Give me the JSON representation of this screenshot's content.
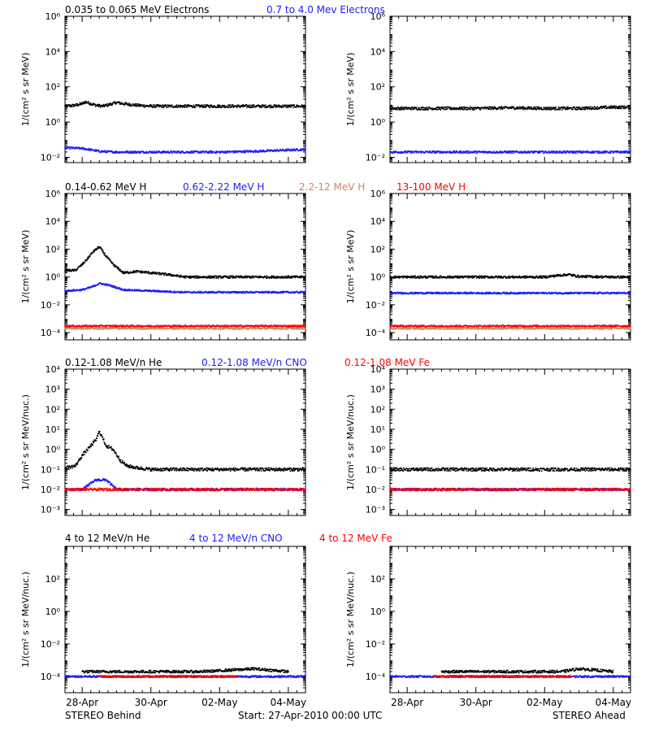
{
  "colors": {
    "black": "#000000",
    "blue": "#1c1cff",
    "tan": "#c98a6a",
    "red": "#ff0000"
  },
  "titles": {
    "row1": [
      {
        "text": "0.035 to 0.065 MeV Electrons",
        "color": "#000000"
      },
      {
        "text": "0.7 to 4.0 Mev Electrons",
        "color": "#1c1cff"
      }
    ],
    "row2": [
      {
        "text": "0.14-0.62 MeV H",
        "color": "#000000"
      },
      {
        "text": "0.62-2.22 MeV H",
        "color": "#1c1cff"
      },
      {
        "text": "2.2-12 MeV H",
        "color": "#c98a6a"
      },
      {
        "text": "13-100 MeV H",
        "color": "#ff0000"
      }
    ],
    "row3": [
      {
        "text": "0.12-1.08 MeV/n He",
        "color": "#000000"
      },
      {
        "text": "0.12-1.08 MeV/n CNO",
        "color": "#1c1cff"
      },
      {
        "text": "0.12-1.08 MeV Fe",
        "color": "#ff0000"
      }
    ],
    "row4": [
      {
        "text": "4 to 12 MeV/n He",
        "color": "#000000"
      },
      {
        "text": "4 to 12 MeV/n CNO",
        "color": "#1c1cff"
      },
      {
        "text": "4 to 12 MeV Fe",
        "color": "#ff0000"
      }
    ]
  },
  "ylabels": {
    "mev": "1/(cm² s sr MeV)",
    "nuc": "1/(cm² s sr MeV/nuc.)"
  },
  "footer": {
    "left": "STEREO Behind",
    "center": "Start: 27-Apr-2010 00:00 UTC",
    "right": "STEREO Ahead"
  },
  "chart_data": [
    {
      "type": "scatter",
      "panel": "row1-behind",
      "x_unit": "days since start",
      "xlim": [
        0.5,
        7.5
      ],
      "x_ticks": [
        {
          "label": "28-Apr",
          "value": 1.0
        },
        {
          "label": "30-Apr",
          "value": 3.0
        },
        {
          "label": "02-May",
          "value": 5.0
        },
        {
          "label": "04-May",
          "value": 7.0
        }
      ],
      "y_scale": "log",
      "ylim": [
        0.005,
        1000000
      ],
      "yticks": [
        {
          "label": "10⁻²",
          "value": 0.01
        },
        {
          "label": "10⁰",
          "value": 1
        },
        {
          "label": "10²",
          "value": 100
        },
        {
          "label": "10⁴",
          "value": 10000
        },
        {
          "label": "10⁶",
          "value": 1000000
        }
      ],
      "ylabel_key": "mev",
      "series": [
        {
          "name": "0.035 to 0.065 MeV Electrons",
          "color": "#000000",
          "x": [
            0.5,
            0.8,
            1.0,
            1.1,
            1.2,
            1.4,
            1.6,
            1.8,
            2.0,
            2.2,
            2.6,
            3.0,
            3.5,
            4.0,
            5.0,
            6.0,
            7.0,
            7.5
          ],
          "y": [
            8,
            9,
            11,
            14,
            12,
            9,
            8,
            10,
            13,
            11,
            9,
            8,
            8,
            8,
            8,
            8,
            8,
            8
          ]
        },
        {
          "name": "0.7 to 4.0 Mev Electrons",
          "color": "#1c1cff",
          "x": [
            0.5,
            1.0,
            1.2,
            1.5,
            2.0,
            3.0,
            4.0,
            5.0,
            6.0,
            7.0,
            7.5
          ],
          "y": [
            0.035,
            0.032,
            0.028,
            0.022,
            0.02,
            0.02,
            0.02,
            0.02,
            0.022,
            0.026,
            0.028
          ]
        }
      ]
    },
    {
      "type": "scatter",
      "panel": "row1-ahead",
      "x_unit": "days since start",
      "xlim": [
        0.5,
        7.5
      ],
      "x_ticks": [
        {
          "label": "28-Apr",
          "value": 1.0
        },
        {
          "label": "30-Apr",
          "value": 3.0
        },
        {
          "label": "02-May",
          "value": 5.0
        },
        {
          "label": "04-May",
          "value": 7.0
        }
      ],
      "y_scale": "log",
      "ylim": [
        0.005,
        1000000
      ],
      "yticks": [
        {
          "label": "10⁻²",
          "value": 0.01
        },
        {
          "label": "10⁰",
          "value": 1
        },
        {
          "label": "10²",
          "value": 100
        },
        {
          "label": "10⁴",
          "value": 10000
        },
        {
          "label": "10⁶",
          "value": 1000000
        }
      ],
      "ylabel_key": "mev",
      "series": [
        {
          "name": "0.035 to 0.065 MeV Electrons",
          "color": "#000000",
          "x": [
            0.5,
            1.0,
            2.0,
            3.0,
            4.0,
            5.0,
            6.0,
            7.0,
            7.5
          ],
          "y": [
            6,
            6,
            6,
            6,
            6.5,
            6,
            6,
            7,
            7
          ]
        },
        {
          "name": "0.7 to 4.0 Mev Electrons",
          "color": "#1c1cff",
          "x": [
            0.5,
            1.0,
            2.0,
            3.0,
            4.0,
            5.0,
            6.0,
            7.0,
            7.5
          ],
          "y": [
            0.02,
            0.02,
            0.02,
            0.02,
            0.02,
            0.02,
            0.02,
            0.02,
            0.02
          ]
        }
      ]
    },
    {
      "type": "scatter",
      "panel": "row2-behind",
      "x_unit": "days since start",
      "xlim": [
        0.5,
        7.5
      ],
      "x_ticks": [
        {
          "label": "28-Apr",
          "value": 1.0
        },
        {
          "label": "30-Apr",
          "value": 3.0
        },
        {
          "label": "02-May",
          "value": 5.0
        },
        {
          "label": "04-May",
          "value": 7.0
        }
      ],
      "y_scale": "log",
      "ylim": [
        3e-05,
        1000000
      ],
      "yticks": [
        {
          "label": "10⁻⁴",
          "value": 0.0001
        },
        {
          "label": "10⁻²",
          "value": 0.01
        },
        {
          "label": "10⁰",
          "value": 1
        },
        {
          "label": "10²",
          "value": 100
        },
        {
          "label": "10⁴",
          "value": 10000
        },
        {
          "label": "10⁶",
          "value": 1000000
        }
      ],
      "ylabel_key": "mev",
      "series": [
        {
          "name": "0.14-0.62 MeV H",
          "color": "#000000",
          "x": [
            0.5,
            0.8,
            1.0,
            1.15,
            1.3,
            1.5,
            1.7,
            1.9,
            2.2,
            2.6,
            3.0,
            3.5,
            4.0,
            5.0,
            6.0,
            7.0,
            7.5
          ],
          "y": [
            3,
            3,
            8,
            20,
            60,
            150,
            30,
            8,
            2,
            2.5,
            2,
            1.5,
            1,
            1,
            1,
            1,
            1
          ]
        },
        {
          "name": "0.62-2.22 MeV H",
          "color": "#1c1cff",
          "x": [
            0.5,
            1.0,
            1.3,
            1.5,
            1.8,
            2.2,
            3.0,
            4.0,
            5.0,
            6.0,
            7.0,
            7.5
          ],
          "y": [
            0.1,
            0.12,
            0.2,
            0.35,
            0.25,
            0.12,
            0.1,
            0.08,
            0.08,
            0.08,
            0.08,
            0.08
          ]
        },
        {
          "name": "2.2-12 MeV H",
          "color": "#c98a6a",
          "x": [
            0.5,
            2.0,
            4.0,
            6.0,
            7.5
          ],
          "y": [
            0.0002,
            0.0002,
            0.0002,
            0.0002,
            0.0002
          ]
        },
        {
          "name": "13-100 MeV H",
          "color": "#ff0000",
          "x": [
            0.5,
            2.0,
            4.0,
            6.0,
            7.5
          ],
          "y": [
            0.0003,
            0.0003,
            0.0003,
            0.0003,
            0.0003
          ]
        }
      ]
    },
    {
      "type": "scatter",
      "panel": "row2-ahead",
      "x_unit": "days since start",
      "xlim": [
        0.5,
        7.5
      ],
      "x_ticks": [
        {
          "label": "28-Apr",
          "value": 1.0
        },
        {
          "label": "30-Apr",
          "value": 3.0
        },
        {
          "label": "02-May",
          "value": 5.0
        },
        {
          "label": "04-May",
          "value": 7.0
        }
      ],
      "y_scale": "log",
      "ylim": [
        3e-05,
        1000000
      ],
      "yticks": [
        {
          "label": "10⁻⁴",
          "value": 0.0001
        },
        {
          "label": "10⁻²",
          "value": 0.01
        },
        {
          "label": "10⁰",
          "value": 1
        },
        {
          "label": "10²",
          "value": 100
        },
        {
          "label": "10⁴",
          "value": 10000
        },
        {
          "label": "10⁶",
          "value": 1000000
        }
      ],
      "ylabel_key": "mev",
      "series": [
        {
          "name": "0.14-0.62 MeV H",
          "color": "#000000",
          "x": [
            0.5,
            1.0,
            2.0,
            3.0,
            4.0,
            5.0,
            5.4,
            5.7,
            6.0,
            7.0,
            7.5
          ],
          "y": [
            1,
            1,
            1,
            1,
            1,
            1,
            1.3,
            1.5,
            1.1,
            1,
            1
          ]
        },
        {
          "name": "0.62-2.22 MeV H",
          "color": "#1c1cff",
          "x": [
            0.5,
            2.0,
            4.0,
            6.0,
            7.5
          ],
          "y": [
            0.07,
            0.07,
            0.07,
            0.07,
            0.07
          ]
        },
        {
          "name": "2.2-12 MeV H",
          "color": "#c98a6a",
          "x": [
            0.5,
            2.0,
            4.0,
            6.0,
            7.5
          ],
          "y": [
            0.0002,
            0.0002,
            0.0002,
            0.0002,
            0.0002
          ]
        },
        {
          "name": "13-100 MeV H",
          "color": "#ff0000",
          "x": [
            0.5,
            2.0,
            4.0,
            6.0,
            7.5
          ],
          "y": [
            0.0003,
            0.0003,
            0.0003,
            0.0003,
            0.0003
          ]
        }
      ]
    },
    {
      "type": "scatter",
      "panel": "row3-behind",
      "x_unit": "days since start",
      "xlim": [
        0.5,
        7.5
      ],
      "x_ticks": [
        {
          "label": "28-Apr",
          "value": 1.0
        },
        {
          "label": "30-Apr",
          "value": 3.0
        },
        {
          "label": "02-May",
          "value": 5.0
        },
        {
          "label": "04-May",
          "value": 7.0
        }
      ],
      "y_scale": "log",
      "ylim": [
        0.0005,
        10000
      ],
      "yticks": [
        {
          "label": "10⁻³",
          "value": 0.001
        },
        {
          "label": "10⁻²",
          "value": 0.01
        },
        {
          "label": "10⁻¹",
          "value": 0.1
        },
        {
          "label": "10⁰",
          "value": 1
        },
        {
          "label": "10¹",
          "value": 10
        },
        {
          "label": "10²",
          "value": 100
        },
        {
          "label": "10³",
          "value": 1000
        },
        {
          "label": "10⁴",
          "value": 10000
        }
      ],
      "ylabel_key": "nuc",
      "series": [
        {
          "name": "0.12-1.08 MeV/n He",
          "color": "#000000",
          "x": [
            0.5,
            0.8,
            1.0,
            1.2,
            1.4,
            1.5,
            1.7,
            1.9,
            2.1,
            2.3,
            2.6,
            3.0,
            4.0,
            5.0,
            6.0,
            7.0,
            7.5
          ],
          "y": [
            0.12,
            0.15,
            0.5,
            1.2,
            3,
            8,
            1.5,
            1,
            0.3,
            0.15,
            0.12,
            0.1,
            0.1,
            0.1,
            0.1,
            0.1,
            0.1
          ]
        },
        {
          "name": "0.12-1.08 MeV/n CNO",
          "color": "#1c1cff",
          "x": [
            0.5,
            1.0,
            1.4,
            1.7,
            2.0,
            3.0,
            4.0,
            5.0,
            6.0,
            7.0,
            7.5
          ],
          "y": [
            0.01,
            0.01,
            0.03,
            0.03,
            0.01,
            0.01,
            0.01,
            0.01,
            0.01,
            0.01,
            0.01
          ]
        },
        {
          "name": "0.12-1.08 MeV Fe",
          "color": "#ff0000",
          "x": [
            0.5,
            2.0,
            4.0,
            6.0,
            7.5
          ],
          "y": [
            0.01,
            0.01,
            0.01,
            0.01,
            0.01
          ]
        }
      ]
    },
    {
      "type": "scatter",
      "panel": "row3-ahead",
      "x_unit": "days since start",
      "xlim": [
        0.5,
        7.5
      ],
      "x_ticks": [
        {
          "label": "28-Apr",
          "value": 1.0
        },
        {
          "label": "30-Apr",
          "value": 3.0
        },
        {
          "label": "02-May",
          "value": 5.0
        },
        {
          "label": "04-May",
          "value": 7.0
        }
      ],
      "y_scale": "log",
      "ylim": [
        0.0005,
        10000
      ],
      "yticks": [
        {
          "label": "10⁻³",
          "value": 0.001
        },
        {
          "label": "10⁻²",
          "value": 0.01
        },
        {
          "label": "10⁻¹",
          "value": 0.1
        },
        {
          "label": "10⁰",
          "value": 1
        },
        {
          "label": "10¹",
          "value": 10
        },
        {
          "label": "10²",
          "value": 100
        },
        {
          "label": "10³",
          "value": 1000
        },
        {
          "label": "10⁴",
          "value": 10000
        }
      ],
      "ylabel_key": "nuc",
      "series": [
        {
          "name": "0.12-1.08 MeV/n He",
          "color": "#000000",
          "x": [
            0.5,
            2.0,
            4.0,
            6.0,
            7.5
          ],
          "y": [
            0.1,
            0.1,
            0.1,
            0.1,
            0.1
          ]
        },
        {
          "name": "0.12-1.08 MeV/n CNO",
          "color": "#1c1cff",
          "x": [
            0.5,
            2.0,
            4.0,
            6.0,
            7.5
          ],
          "y": [
            0.01,
            0.01,
            0.01,
            0.01,
            0.01
          ]
        },
        {
          "name": "0.12-1.08 MeV Fe",
          "color": "#ff0000",
          "x": [
            0.5,
            2.0,
            4.0,
            6.0,
            7.5
          ],
          "y": [
            0.01,
            0.01,
            0.01,
            0.01,
            0.01
          ]
        }
      ]
    },
    {
      "type": "scatter",
      "panel": "row4-behind",
      "x_unit": "days since start",
      "xlim": [
        0.5,
        7.5
      ],
      "x_ticks": [
        {
          "label": "28-Apr",
          "value": 1.0
        },
        {
          "label": "30-Apr",
          "value": 3.0
        },
        {
          "label": "02-May",
          "value": 5.0
        },
        {
          "label": "04-May",
          "value": 7.0
        }
      ],
      "y_scale": "log",
      "ylim": [
        1e-05,
        10000
      ],
      "yticks": [
        {
          "label": "10⁻⁴",
          "value": 0.0001
        },
        {
          "label": "10⁻²",
          "value": 0.01
        },
        {
          "label": "10⁰",
          "value": 1
        },
        {
          "label": "10²",
          "value": 100
        }
      ],
      "ylabel_key": "nuc",
      "series": [
        {
          "name": "4 to 12 MeV/n He",
          "color": "#000000",
          "x": [
            1.0,
            1.5,
            2.0,
            3.0,
            3.5,
            4.5,
            6.0,
            7.0
          ],
          "y": [
            0.0002,
            0.0002,
            0.0002,
            0.0002,
            0.0002,
            0.0002,
            0.0003,
            0.0002
          ]
        },
        {
          "name": "4 to 12 MeV/n CNO",
          "color": "#1c1cff",
          "x": [
            0.5,
            2.0,
            4.0,
            6.0,
            7.5
          ],
          "y": [
            0.0001,
            0.0001,
            0.0001,
            0.0001,
            0.0001
          ]
        },
        {
          "name": "4 to 12 MeV Fe",
          "color": "#ff0000",
          "x": [
            1.5,
            3.5,
            5.5
          ],
          "y": [
            0.0001,
            0.0001,
            0.0001
          ]
        }
      ]
    },
    {
      "type": "scatter",
      "panel": "row4-ahead",
      "x_unit": "days since start",
      "xlim": [
        0.5,
        7.5
      ],
      "x_ticks": [
        {
          "label": "28-Apr",
          "value": 1.0
        },
        {
          "label": "30-Apr",
          "value": 3.0
        },
        {
          "label": "02-May",
          "value": 5.0
        },
        {
          "label": "04-May",
          "value": 7.0
        }
      ],
      "y_scale": "log",
      "ylim": [
        1e-05,
        10000
      ],
      "yticks": [
        {
          "label": "10⁻⁴",
          "value": 0.0001
        },
        {
          "label": "10⁻²",
          "value": 0.01
        },
        {
          "label": "10⁰",
          "value": 1
        },
        {
          "label": "10²",
          "value": 100
        }
      ],
      "ylabel_key": "nuc",
      "series": [
        {
          "name": "4 to 12 MeV/n He",
          "color": "#000000",
          "x": [
            2.0,
            4.0,
            5.5,
            6.0,
            7.0
          ],
          "y": [
            0.0002,
            0.0002,
            0.0002,
            0.0003,
            0.0002
          ]
        },
        {
          "name": "4 to 12 MeV/n CNO",
          "color": "#1c1cff",
          "x": [
            0.5,
            2.0,
            4.0,
            6.0,
            7.5
          ],
          "y": [
            0.0001,
            0.0001,
            0.0001,
            0.0001,
            0.0001
          ]
        },
        {
          "name": "4 to 12 MeV Fe",
          "color": "#ff0000",
          "x": [
            1.8,
            3.6,
            5.8
          ],
          "y": [
            0.0001,
            0.0001,
            0.0001
          ]
        }
      ]
    }
  ]
}
